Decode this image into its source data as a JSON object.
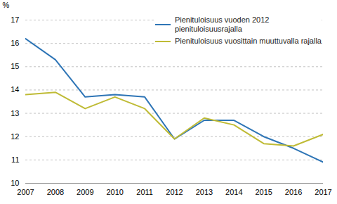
{
  "chart_data": {
    "type": "line",
    "ylabel": "%",
    "x": [
      2007,
      2008,
      2009,
      2010,
      2011,
      2012,
      2013,
      2014,
      2015,
      2016,
      2017
    ],
    "xlim": [
      2007,
      2017
    ],
    "xticks": [
      2007,
      2008,
      2009,
      2010,
      2011,
      2012,
      2013,
      2014,
      2015,
      2016,
      2017
    ],
    "ylim": [
      10,
      17
    ],
    "yticks": [
      10,
      11,
      12,
      13,
      14,
      15,
      16,
      17
    ],
    "grid": true,
    "legend": "upper right",
    "series": [
      {
        "name": "Pienituloisuus vuoden 2012\npienituloisuusrajalla",
        "color": "#2E75B6",
        "values": [
          16.2,
          15.3,
          13.7,
          13.8,
          13.7,
          11.9,
          12.7,
          12.7,
          12.0,
          11.5,
          10.9
        ]
      },
      {
        "name": "Pienituloisuus vuosittain muuttuvalla rajalla",
        "color": "#BFBB35",
        "values": [
          13.8,
          13.9,
          13.2,
          13.7,
          13.2,
          11.9,
          12.8,
          12.5,
          11.7,
          11.6,
          12.1
        ]
      }
    ]
  }
}
